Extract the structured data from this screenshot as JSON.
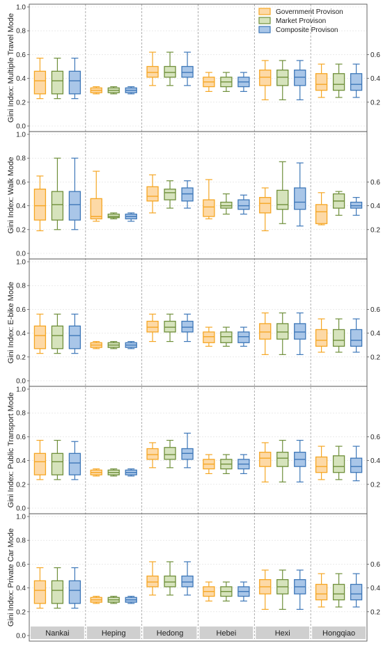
{
  "chart_data": {
    "type": "boxplot",
    "categories": [
      "Nankai",
      "Heping",
      "Hedong",
      "Hebei",
      "Hexi",
      "Hongqiao"
    ],
    "legend": {
      "placement": "top-right",
      "entries": [
        {
          "name": "Government Provison",
          "color": "#f5a623",
          "fill": "#fdd9a6"
        },
        {
          "name": "Market Provison",
          "color": "#6f8f3a",
          "fill": "#d6e3bc"
        },
        {
          "name": "Composite Provison",
          "color": "#3d77b8",
          "fill": "#a9c6e8"
        }
      ]
    },
    "ylim": [
      0,
      1.0
    ],
    "yticks_left": [
      "0.0",
      "0.2",
      "0.4",
      "0.6",
      "0.8",
      "1.0"
    ],
    "yticks_right": [
      "0.2",
      "0.4",
      "0.6"
    ],
    "grid": "dashed",
    "panels": [
      {
        "ylabel": "Gini Index: Multiple Travel Mode",
        "boxes": [
          [
            [
              0.23,
              0.27,
              0.38,
              0.46,
              0.57
            ],
            [
              0.23,
              0.27,
              0.38,
              0.46,
              0.57
            ],
            [
              0.23,
              0.27,
              0.38,
              0.46,
              0.57
            ]
          ],
          [
            [
              0.27,
              0.28,
              0.3,
              0.32,
              0.33
            ],
            [
              0.27,
              0.28,
              0.3,
              0.32,
              0.33
            ],
            [
              0.27,
              0.28,
              0.3,
              0.32,
              0.33
            ]
          ],
          [
            [
              0.34,
              0.41,
              0.45,
              0.5,
              0.62
            ],
            [
              0.34,
              0.41,
              0.45,
              0.5,
              0.62
            ],
            [
              0.34,
              0.41,
              0.45,
              0.5,
              0.62
            ]
          ],
          [
            [
              0.29,
              0.33,
              0.37,
              0.41,
              0.45
            ],
            [
              0.29,
              0.33,
              0.37,
              0.41,
              0.45
            ],
            [
              0.29,
              0.33,
              0.37,
              0.41,
              0.45
            ]
          ],
          [
            [
              0.22,
              0.34,
              0.41,
              0.47,
              0.55
            ],
            [
              0.22,
              0.34,
              0.41,
              0.47,
              0.55
            ],
            [
              0.22,
              0.34,
              0.41,
              0.47,
              0.55
            ]
          ],
          [
            [
              0.24,
              0.3,
              0.35,
              0.44,
              0.52
            ],
            [
              0.24,
              0.3,
              0.35,
              0.44,
              0.52
            ],
            [
              0.24,
              0.3,
              0.35,
              0.44,
              0.52
            ]
          ]
        ]
      },
      {
        "ylabel": "Gini Index: Walk Mode",
        "boxes": [
          [
            [
              0.19,
              0.28,
              0.4,
              0.54,
              0.65
            ],
            [
              0.2,
              0.28,
              0.41,
              0.52,
              0.8
            ],
            [
              0.2,
              0.28,
              0.41,
              0.52,
              0.8
            ]
          ],
          [
            [
              0.27,
              0.29,
              0.31,
              0.46,
              0.69
            ],
            [
              0.29,
              0.3,
              0.31,
              0.33,
              0.34
            ],
            [
              0.27,
              0.29,
              0.31,
              0.33,
              0.34
            ]
          ],
          [
            [
              0.34,
              0.44,
              0.48,
              0.56,
              0.66
            ],
            [
              0.38,
              0.45,
              0.51,
              0.54,
              0.61
            ],
            [
              0.38,
              0.44,
              0.5,
              0.55,
              0.61
            ]
          ],
          [
            [
              0.29,
              0.31,
              0.39,
              0.45,
              0.62
            ],
            [
              0.33,
              0.38,
              0.4,
              0.43,
              0.5
            ],
            [
              0.33,
              0.37,
              0.4,
              0.45,
              0.49
            ]
          ],
          [
            [
              0.19,
              0.34,
              0.42,
              0.47,
              0.55
            ],
            [
              0.25,
              0.37,
              0.41,
              0.53,
              0.77
            ],
            [
              0.23,
              0.37,
              0.43,
              0.55,
              0.76
            ]
          ],
          [
            [
              0.24,
              0.25,
              0.35,
              0.41,
              0.51
            ],
            [
              0.32,
              0.38,
              0.44,
              0.5,
              0.52
            ],
            [
              0.32,
              0.38,
              0.4,
              0.43,
              0.47
            ]
          ]
        ]
      },
      {
        "ylabel": "Gini Index: E-bike Mode",
        "boxes": [
          [
            [
              0.23,
              0.27,
              0.38,
              0.46,
              0.56
            ],
            [
              0.23,
              0.27,
              0.38,
              0.46,
              0.56
            ],
            [
              0.23,
              0.27,
              0.38,
              0.46,
              0.56
            ]
          ],
          [
            [
              0.27,
              0.28,
              0.3,
              0.32,
              0.33
            ],
            [
              0.27,
              0.28,
              0.3,
              0.32,
              0.33
            ],
            [
              0.27,
              0.28,
              0.3,
              0.32,
              0.33
            ]
          ],
          [
            [
              0.33,
              0.41,
              0.45,
              0.5,
              0.56
            ],
            [
              0.33,
              0.41,
              0.45,
              0.5,
              0.56
            ],
            [
              0.33,
              0.41,
              0.45,
              0.5,
              0.56
            ]
          ],
          [
            [
              0.29,
              0.32,
              0.37,
              0.41,
              0.45
            ],
            [
              0.29,
              0.32,
              0.37,
              0.41,
              0.45
            ],
            [
              0.29,
              0.32,
              0.37,
              0.41,
              0.45
            ]
          ],
          [
            [
              0.22,
              0.35,
              0.41,
              0.48,
              0.57
            ],
            [
              0.22,
              0.35,
              0.41,
              0.48,
              0.57
            ],
            [
              0.22,
              0.35,
              0.41,
              0.48,
              0.57
            ]
          ],
          [
            [
              0.24,
              0.29,
              0.34,
              0.43,
              0.52
            ],
            [
              0.24,
              0.29,
              0.34,
              0.43,
              0.52
            ],
            [
              0.24,
              0.29,
              0.34,
              0.43,
              0.52
            ]
          ]
        ]
      },
      {
        "ylabel": "Gini Index: Public Transport Mode",
        "boxes": [
          [
            [
              0.24,
              0.28,
              0.39,
              0.46,
              0.57
            ],
            [
              0.24,
              0.28,
              0.39,
              0.46,
              0.57
            ],
            [
              0.24,
              0.28,
              0.38,
              0.46,
              0.56
            ]
          ],
          [
            [
              0.27,
              0.28,
              0.3,
              0.32,
              0.33
            ],
            [
              0.27,
              0.28,
              0.3,
              0.32,
              0.33
            ],
            [
              0.27,
              0.28,
              0.3,
              0.32,
              0.33
            ]
          ],
          [
            [
              0.34,
              0.41,
              0.45,
              0.5,
              0.55
            ],
            [
              0.34,
              0.41,
              0.45,
              0.51,
              0.57
            ],
            [
              0.34,
              0.41,
              0.46,
              0.5,
              0.63
            ]
          ],
          [
            [
              0.29,
              0.33,
              0.37,
              0.41,
              0.45
            ],
            [
              0.29,
              0.33,
              0.37,
              0.41,
              0.45
            ],
            [
              0.29,
              0.33,
              0.37,
              0.41,
              0.45
            ]
          ],
          [
            [
              0.22,
              0.35,
              0.42,
              0.47,
              0.55
            ],
            [
              0.22,
              0.35,
              0.42,
              0.47,
              0.57
            ],
            [
              0.22,
              0.35,
              0.41,
              0.47,
              0.57
            ]
          ],
          [
            [
              0.24,
              0.3,
              0.35,
              0.43,
              0.52
            ],
            [
              0.24,
              0.3,
              0.35,
              0.44,
              0.52
            ],
            [
              0.23,
              0.3,
              0.35,
              0.42,
              0.52
            ]
          ]
        ]
      },
      {
        "ylabel": "Gini Index: Private Car Mode",
        "boxes": [
          [
            [
              0.23,
              0.27,
              0.38,
              0.46,
              0.57
            ],
            [
              0.23,
              0.27,
              0.38,
              0.46,
              0.57
            ],
            [
              0.23,
              0.27,
              0.38,
              0.46,
              0.57
            ]
          ],
          [
            [
              0.27,
              0.28,
              0.3,
              0.32,
              0.33
            ],
            [
              0.27,
              0.28,
              0.3,
              0.32,
              0.33
            ],
            [
              0.27,
              0.28,
              0.3,
              0.32,
              0.33
            ]
          ],
          [
            [
              0.34,
              0.41,
              0.45,
              0.5,
              0.62
            ],
            [
              0.34,
              0.41,
              0.45,
              0.5,
              0.62
            ],
            [
              0.34,
              0.41,
              0.45,
              0.5,
              0.62
            ]
          ],
          [
            [
              0.29,
              0.33,
              0.37,
              0.41,
              0.45
            ],
            [
              0.29,
              0.33,
              0.37,
              0.41,
              0.45
            ],
            [
              0.29,
              0.33,
              0.37,
              0.41,
              0.45
            ]
          ],
          [
            [
              0.22,
              0.35,
              0.41,
              0.47,
              0.55
            ],
            [
              0.22,
              0.35,
              0.41,
              0.47,
              0.55
            ],
            [
              0.22,
              0.35,
              0.41,
              0.47,
              0.55
            ]
          ],
          [
            [
              0.24,
              0.3,
              0.35,
              0.43,
              0.52
            ],
            [
              0.24,
              0.3,
              0.35,
              0.43,
              0.52
            ],
            [
              0.24,
              0.3,
              0.35,
              0.43,
              0.52
            ]
          ]
        ]
      }
    ]
  }
}
